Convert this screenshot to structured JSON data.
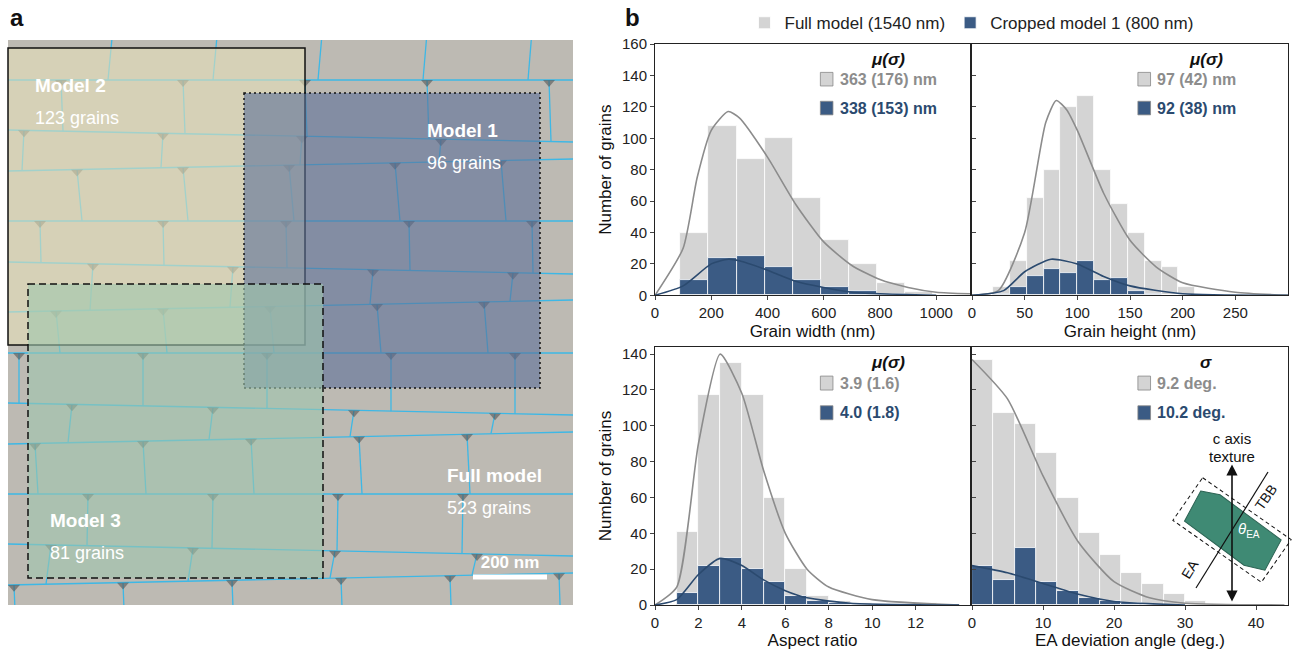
{
  "panel_labels": [
    "a",
    "b"
  ],
  "panel_a": {
    "models": [
      {
        "label": "Model 2",
        "grains": "123 grains",
        "line_style": "solid",
        "color": "#e6e1b9"
      },
      {
        "label": "Model 1",
        "grains": "96 grains",
        "line_style": "dotted",
        "color": "#5b6f97"
      },
      {
        "label": "Model 3",
        "grains": "81 grains",
        "line_style": "dashed",
        "color": "#9fc6ad"
      },
      {
        "label": "Full model",
        "grains": "523 grains"
      }
    ],
    "scale_bar": "200 nm"
  },
  "chart_data": [
    {
      "type": "histogram",
      "xlabel": "Grain width (nm)",
      "ylabel": "Number of grains",
      "legend": "top",
      "stats_header": "μ(σ)",
      "bins": [
        90,
        190,
        290,
        390,
        490,
        590,
        690,
        790,
        890,
        990
      ],
      "xlim": [
        0,
        1120
      ],
      "xticks": [
        0,
        200,
        400,
        600,
        800,
        1000
      ],
      "ylim": [
        0,
        160
      ],
      "yticks": [
        0,
        20,
        40,
        60,
        80,
        100,
        120,
        140,
        160
      ],
      "series": [
        {
          "name": "Full model (1540 nm)",
          "color": "#d4d4d4",
          "values": [
            40,
            108,
            87,
            100,
            62,
            35,
            20,
            8,
            2
          ],
          "stat_label": "363 (176) nm",
          "fit": {
            "color": "#8c8c8c",
            "x": [
              0,
              100,
              150,
              200,
              260,
              300,
              400,
              500,
              600,
              700,
              800,
              900,
              1000,
              1120
            ],
            "y": [
              0,
              30,
              75,
              105,
              117,
              113,
              88,
              58,
              34,
              19,
              10,
              5,
              2,
              1
            ]
          }
        },
        {
          "name": "Cropped model 1 (800 nm)",
          "color": "#3b5b84",
          "values": [
            10,
            24,
            25,
            18,
            10,
            5,
            3,
            1,
            0
          ],
          "stat_label": "338 (153) nm",
          "fit": {
            "color": "#2b4a6f",
            "x": [
              0,
              100,
              200,
              260,
              300,
              400,
              500,
              600,
              700,
              800,
              1000
            ],
            "y": [
              0,
              6,
              20,
              23,
              22,
              16,
              9,
              5,
              2,
              1,
              0
            ]
          }
        }
      ]
    },
    {
      "type": "histogram",
      "xlabel": "Grain height (nm)",
      "tick_labels": "x",
      "stats_header": "μ(σ)",
      "bins": [
        20,
        36,
        52,
        68,
        84,
        100,
        116,
        132,
        148,
        164,
        180,
        196,
        212
      ],
      "xlim": [
        0,
        300
      ],
      "xticks": [
        0,
        50,
        100,
        150,
        200,
        250
      ],
      "ylim": [
        0,
        160
      ],
      "yticks": [
        0,
        20,
        40,
        60,
        80,
        100,
        120,
        140,
        160
      ],
      "series": [
        {
          "name": "Full model (1540 nm)",
          "color": "#d4d4d4",
          "values": [
            5,
            22,
            62,
            80,
            120,
            127,
            80,
            58,
            40,
            22,
            18,
            5
          ],
          "stat_label": "97 (42) nm",
          "fit": {
            "color": "#8c8c8c",
            "x": [
              0,
              25,
              50,
              70,
              80,
              90,
              100,
              125,
              150,
              175,
              200,
              250,
              300
            ],
            "y": [
              0,
              3,
              40,
              110,
              124,
              118,
              105,
              65,
              35,
              18,
              8,
              2,
              0
            ]
          }
        },
        {
          "name": "Cropped model 1 (800 nm)",
          "color": "#3b5b84",
          "values": [
            1,
            5,
            12,
            17,
            14,
            22,
            10,
            11,
            3,
            1,
            0,
            0
          ],
          "stat_label": "92 (38) nm",
          "fit": {
            "color": "#2b4a6f",
            "x": [
              0,
              30,
              50,
              75,
              100,
              125,
              150,
              200,
              300
            ],
            "y": [
              0,
              3,
              15,
              23,
              20,
              12,
              6,
              1,
              0
            ]
          }
        }
      ]
    },
    {
      "type": "histogram",
      "xlabel": "Aspect ratio",
      "ylabel": "Number of grains",
      "stats_header": "μ(σ)",
      "bins": [
        1,
        2,
        3,
        4,
        5,
        6,
        7,
        8,
        9,
        10,
        11,
        12,
        13
      ],
      "xlim": [
        0,
        14.5
      ],
      "xticks": [
        0,
        2,
        4,
        6,
        8,
        10,
        12
      ],
      "ylim": [
        0,
        144
      ],
      "yticks": [
        0,
        20,
        40,
        60,
        80,
        100,
        120,
        140
      ],
      "series": [
        {
          "name": "Full model (1540 nm)",
          "color": "#d4d4d4",
          "values": [
            41,
            117,
            135,
            117,
            60,
            20,
            5,
            2,
            1,
            0,
            0,
            1
          ],
          "stat_label": "3.9 (1.6)",
          "fit": {
            "color": "#8c8c8c",
            "x": [
              0,
              1,
              2,
              3,
              4,
              5,
              6,
              7,
              8,
              10,
              14
            ],
            "y": [
              0,
              10,
              90,
              140,
              118,
              75,
              40,
              20,
              10,
              3,
              0
            ]
          }
        },
        {
          "name": "Cropped model 1 (800 nm)",
          "color": "#3b5b84",
          "values": [
            7,
            22,
            26,
            20,
            13,
            5,
            2,
            1,
            0,
            0,
            0,
            0
          ],
          "stat_label": "4.0 (1.8)",
          "fit": {
            "color": "#2b4a6f",
            "x": [
              0,
              1,
              2,
              3,
              4,
              5,
              6,
              7,
              9,
              14
            ],
            "y": [
              0,
              3,
              17,
              26,
              22,
              14,
              8,
              4,
              1,
              0
            ]
          }
        }
      ]
    },
    {
      "type": "histogram",
      "xlabel": "EA deviation angle (deg.)",
      "tick_labels": "x",
      "stats_header": "σ",
      "bins": [
        0,
        3,
        6,
        9,
        12,
        15,
        18,
        21,
        24,
        27,
        30,
        33
      ],
      "xlim": [
        0,
        44.5
      ],
      "xticks": [
        0,
        10,
        20,
        30,
        40
      ],
      "ylim": [
        0,
        144
      ],
      "yticks": [
        0,
        20,
        40,
        60,
        80,
        100,
        120,
        140
      ],
      "series": [
        {
          "name": "Full model (1540 nm)",
          "color": "#d4d4d4",
          "values": [
            137,
            107,
            101,
            85,
            60,
            40,
            28,
            18,
            12,
            6,
            2
          ],
          "stat_label": "9.2 deg.",
          "fit": {
            "color": "#8c8c8c",
            "x": [
              0,
              5,
              10,
              15,
              20,
              25,
              30,
              44
            ],
            "y": [
              137,
              115,
              72,
              35,
              13,
              4,
              1,
              0
            ]
          }
        },
        {
          "name": "Cropped model 1 (800 nm)",
          "color": "#3b5b84",
          "values": [
            22,
            14,
            32,
            13,
            8,
            4,
            2,
            1,
            0,
            0,
            0
          ],
          "stat_label": "10.2 deg.",
          "fit": {
            "color": "#2b4a6f",
            "x": [
              0,
              5,
              10,
              15,
              20,
              30
            ],
            "y": [
              22,
              18,
              12,
              6,
              2,
              0
            ]
          }
        }
      ],
      "inset": {
        "axis_lines": [
          "c axis",
          "texture"
        ],
        "boundary": "TBB",
        "easy_axis": "EA",
        "angle": {
          "symbol": "θ",
          "subscript": "EA"
        },
        "color": "#3f8a74"
      }
    }
  ]
}
